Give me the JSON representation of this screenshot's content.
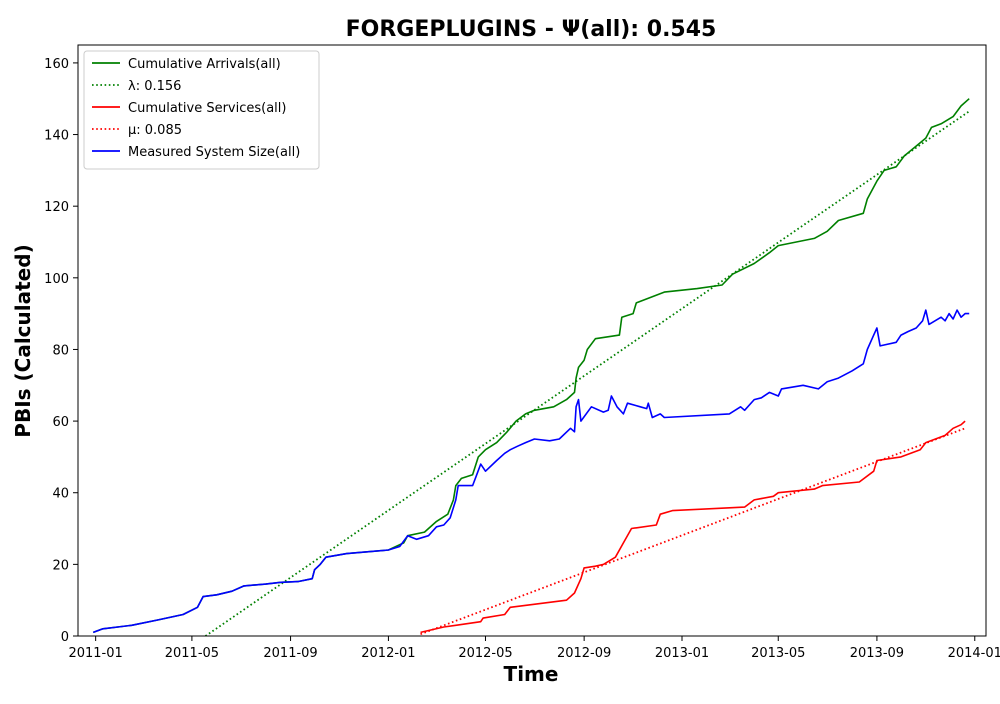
{
  "chart_data": {
    "type": "line",
    "title": "FORGEPLUGINS -  Ψ(all): 0.545",
    "xlabel": "Time",
    "ylabel": "PBIs (Calculated)",
    "xlim": [
      "2010-12-10",
      "2014-01-15"
    ],
    "ylim": [
      0,
      165
    ],
    "x_ticks": [
      "2011-01",
      "2011-05",
      "2011-09",
      "2012-01",
      "2012-05",
      "2012-09",
      "2013-01",
      "2013-05",
      "2013-09",
      "2014-01"
    ],
    "y_ticks": [
      0,
      20,
      40,
      60,
      80,
      100,
      120,
      140,
      160
    ],
    "grid": false,
    "legend_position": "top-left",
    "series": [
      {
        "name": "Cumulative Arrivals(all)",
        "color": "#008000",
        "style": "solid",
        "points": [
          [
            "2010-12-29",
            1
          ],
          [
            "2011-01-10",
            2
          ],
          [
            "2011-02-15",
            3
          ],
          [
            "2011-03-20",
            4.5
          ],
          [
            "2011-04-20",
            6
          ],
          [
            "2011-05-08",
            8
          ],
          [
            "2011-05-15",
            11
          ],
          [
            "2011-06-01",
            11.5
          ],
          [
            "2011-06-20",
            12.5
          ],
          [
            "2011-07-05",
            14
          ],
          [
            "2011-08-01",
            14.5
          ],
          [
            "2011-08-20",
            15
          ],
          [
            "2011-09-10",
            15.2
          ],
          [
            "2011-09-28",
            16
          ],
          [
            "2011-10-01",
            18.5
          ],
          [
            "2011-10-08",
            20
          ],
          [
            "2011-10-15",
            22
          ],
          [
            "2011-11-10",
            23
          ],
          [
            "2012-01-01",
            24
          ],
          [
            "2012-01-20",
            26
          ],
          [
            "2012-01-25",
            28
          ],
          [
            "2012-02-15",
            29
          ],
          [
            "2012-03-01",
            32
          ],
          [
            "2012-03-15",
            34
          ],
          [
            "2012-03-22",
            38
          ],
          [
            "2012-03-25",
            42
          ],
          [
            "2012-04-01",
            44
          ],
          [
            "2012-04-15",
            45
          ],
          [
            "2012-04-22",
            50
          ],
          [
            "2012-05-01",
            52
          ],
          [
            "2012-05-15",
            54
          ],
          [
            "2012-05-28",
            57
          ],
          [
            "2012-06-08",
            60
          ],
          [
            "2012-06-20",
            62
          ],
          [
            "2012-07-01",
            63
          ],
          [
            "2012-07-25",
            64
          ],
          [
            "2012-08-10",
            66
          ],
          [
            "2012-08-20",
            68
          ],
          [
            "2012-08-22",
            72
          ],
          [
            "2012-08-25",
            75
          ],
          [
            "2012-09-01",
            77
          ],
          [
            "2012-09-05",
            80
          ],
          [
            "2012-09-15",
            83
          ],
          [
            "2012-10-15",
            84
          ],
          [
            "2012-10-18",
            89
          ],
          [
            "2012-11-01",
            90
          ],
          [
            "2012-11-05",
            93
          ],
          [
            "2012-12-10",
            96
          ],
          [
            "2013-01-20",
            97
          ],
          [
            "2013-02-20",
            98
          ],
          [
            "2013-03-05",
            101
          ],
          [
            "2013-04-01",
            104
          ],
          [
            "2013-04-20",
            107
          ],
          [
            "2013-05-01",
            109
          ],
          [
            "2013-06-15",
            111
          ],
          [
            "2013-07-01",
            113
          ],
          [
            "2013-07-15",
            116
          ],
          [
            "2013-08-15",
            118
          ],
          [
            "2013-08-20",
            122
          ],
          [
            "2013-09-01",
            127
          ],
          [
            "2013-09-10",
            130
          ],
          [
            "2013-09-25",
            131
          ],
          [
            "2013-10-05",
            134
          ],
          [
            "2013-11-01",
            139
          ],
          [
            "2013-11-08",
            142
          ],
          [
            "2013-11-20",
            143
          ],
          [
            "2013-12-05",
            145
          ],
          [
            "2013-12-15",
            148
          ],
          [
            "2013-12-25",
            150
          ]
        ]
      },
      {
        "name": "λ: 0.156",
        "color": "#008000",
        "style": "dotted",
        "points": [
          [
            "2011-05-18",
            0
          ],
          [
            "2013-12-25",
            146.5
          ]
        ]
      },
      {
        "name": "Cumulative Services(all)",
        "color": "#ff0000",
        "style": "solid",
        "points": [
          [
            "2012-02-10",
            1
          ],
          [
            "2012-03-10",
            2.5
          ],
          [
            "2012-03-25",
            3
          ],
          [
            "2012-04-25",
            4
          ],
          [
            "2012-04-28",
            5
          ],
          [
            "2012-05-25",
            6
          ],
          [
            "2012-06-01",
            8
          ],
          [
            "2012-08-10",
            10
          ],
          [
            "2012-08-20",
            12
          ],
          [
            "2012-08-28",
            16
          ],
          [
            "2012-09-01",
            19
          ],
          [
            "2012-09-15",
            19.5
          ],
          [
            "2012-09-25",
            20
          ],
          [
            "2012-10-10",
            22
          ],
          [
            "2012-10-20",
            26
          ],
          [
            "2012-10-30",
            30
          ],
          [
            "2012-11-30",
            31
          ],
          [
            "2012-12-05",
            34
          ],
          [
            "2012-12-20",
            35
          ],
          [
            "2013-03-20",
            36
          ],
          [
            "2013-04-01",
            38
          ],
          [
            "2013-04-25",
            39
          ],
          [
            "2013-05-01",
            40
          ],
          [
            "2013-06-15",
            41
          ],
          [
            "2013-06-25",
            42
          ],
          [
            "2013-08-10",
            43
          ],
          [
            "2013-08-28",
            46
          ],
          [
            "2013-09-01",
            49
          ],
          [
            "2013-10-01",
            50
          ],
          [
            "2013-10-25",
            52
          ],
          [
            "2013-11-01",
            54
          ],
          [
            "2013-11-25",
            56
          ],
          [
            "2013-12-05",
            58
          ],
          [
            "2013-12-15",
            59
          ],
          [
            "2013-12-20",
            60
          ]
        ]
      },
      {
        "name": "μ: 0.085",
        "color": "#ff0000",
        "style": "dotted",
        "points": [
          [
            "2012-02-10",
            0.5
          ],
          [
            "2013-12-20",
            58
          ]
        ]
      },
      {
        "name": "Measured System Size(all)",
        "color": "#0000ff",
        "style": "solid",
        "points": [
          [
            "2010-12-29",
            1
          ],
          [
            "2011-01-10",
            2
          ],
          [
            "2011-02-15",
            3
          ],
          [
            "2011-03-20",
            4.5
          ],
          [
            "2011-04-20",
            6
          ],
          [
            "2011-05-08",
            8
          ],
          [
            "2011-05-15",
            11
          ],
          [
            "2011-06-01",
            11.5
          ],
          [
            "2011-06-20",
            12.5
          ],
          [
            "2011-07-05",
            14
          ],
          [
            "2011-08-01",
            14.5
          ],
          [
            "2011-08-20",
            15
          ],
          [
            "2011-09-10",
            15.2
          ],
          [
            "2011-09-28",
            16
          ],
          [
            "2011-10-01",
            18.5
          ],
          [
            "2011-10-08",
            20
          ],
          [
            "2011-10-15",
            22
          ],
          [
            "2011-11-10",
            23
          ],
          [
            "2012-01-01",
            24
          ],
          [
            "2012-01-15",
            25
          ],
          [
            "2012-01-25",
            28
          ],
          [
            "2012-02-05",
            27
          ],
          [
            "2012-02-20",
            28
          ],
          [
            "2012-03-01",
            30.5
          ],
          [
            "2012-03-10",
            31
          ],
          [
            "2012-03-18",
            33
          ],
          [
            "2012-03-25",
            38
          ],
          [
            "2012-03-28",
            42
          ],
          [
            "2012-04-15",
            42
          ],
          [
            "2012-04-20",
            45
          ],
          [
            "2012-04-25",
            48
          ],
          [
            "2012-05-01",
            46
          ],
          [
            "2012-05-15",
            49
          ],
          [
            "2012-05-25",
            51
          ],
          [
            "2012-06-01",
            52
          ],
          [
            "2012-06-10",
            53
          ],
          [
            "2012-06-20",
            54
          ],
          [
            "2012-07-01",
            55
          ],
          [
            "2012-07-20",
            54.5
          ],
          [
            "2012-08-01",
            55
          ],
          [
            "2012-08-15",
            58
          ],
          [
            "2012-08-20",
            57
          ],
          [
            "2012-08-22",
            64
          ],
          [
            "2012-08-25",
            66
          ],
          [
            "2012-08-28",
            60
          ],
          [
            "2012-09-10",
            64
          ],
          [
            "2012-09-25",
            62.5
          ],
          [
            "2012-10-01",
            63
          ],
          [
            "2012-10-05",
            67
          ],
          [
            "2012-10-12",
            64
          ],
          [
            "2012-10-20",
            62
          ],
          [
            "2012-10-25",
            65
          ],
          [
            "2012-11-10",
            64
          ],
          [
            "2012-11-18",
            63.5
          ],
          [
            "2012-11-20",
            65
          ],
          [
            "2012-11-25",
            61
          ],
          [
            "2012-12-05",
            62
          ],
          [
            "2012-12-10",
            61
          ],
          [
            "2013-03-01",
            62
          ],
          [
            "2013-03-15",
            64
          ],
          [
            "2013-03-20",
            63
          ],
          [
            "2013-04-01",
            66
          ],
          [
            "2013-04-10",
            66.5
          ],
          [
            "2013-04-20",
            68
          ],
          [
            "2013-05-01",
            67
          ],
          [
            "2013-05-05",
            69
          ],
          [
            "2013-06-01",
            70
          ],
          [
            "2013-06-20",
            69
          ],
          [
            "2013-07-01",
            71
          ],
          [
            "2013-07-15",
            72
          ],
          [
            "2013-08-01",
            74
          ],
          [
            "2013-08-15",
            76
          ],
          [
            "2013-08-20",
            80
          ],
          [
            "2013-08-28",
            84
          ],
          [
            "2013-09-01",
            86
          ],
          [
            "2013-09-05",
            81
          ],
          [
            "2013-09-25",
            82
          ],
          [
            "2013-10-01",
            84
          ],
          [
            "2013-10-10",
            85
          ],
          [
            "2013-10-20",
            86
          ],
          [
            "2013-10-28",
            88
          ],
          [
            "2013-11-01",
            91
          ],
          [
            "2013-11-05",
            87
          ],
          [
            "2013-11-20",
            89
          ],
          [
            "2013-11-25",
            88
          ],
          [
            "2013-11-30",
            90
          ],
          [
            "2013-12-05",
            88.5
          ],
          [
            "2013-12-10",
            91
          ],
          [
            "2013-12-15",
            89
          ],
          [
            "2013-12-20",
            90
          ],
          [
            "2013-12-25",
            90
          ]
        ]
      }
    ]
  }
}
